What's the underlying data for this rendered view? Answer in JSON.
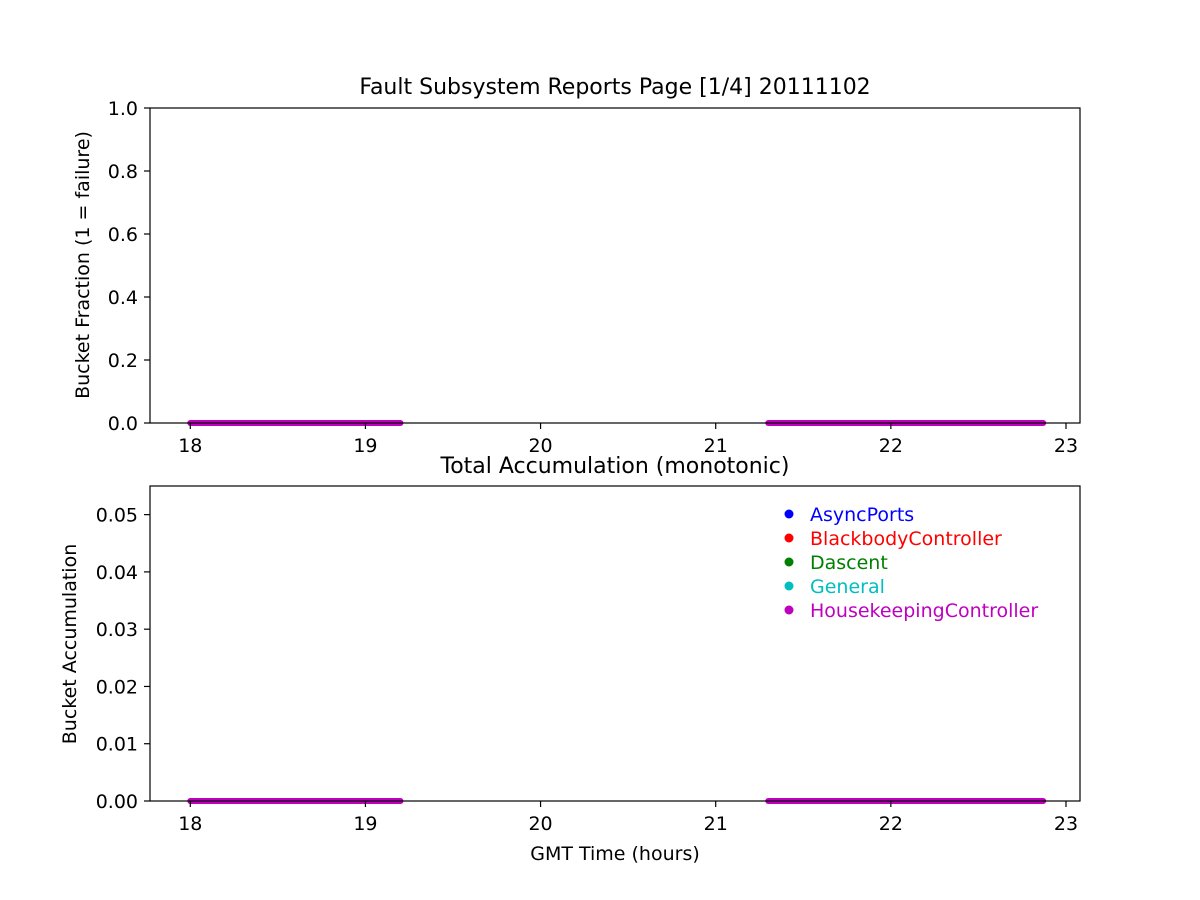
{
  "chart_data": [
    {
      "type": "scatter",
      "title": "Fault Subsystem Reports Page [1/4] 20111102",
      "xlabel": "",
      "ylabel": "Bucket Fraction (1 = failure)",
      "xlim": [
        17.77,
        23.08
      ],
      "ylim": [
        0.0,
        1.0
      ],
      "xticks": [
        18,
        19,
        20,
        21,
        22,
        23
      ],
      "xtick_labels": [
        "18",
        "19",
        "20",
        "21",
        "22",
        "23"
      ],
      "yticks": [
        0.0,
        0.2,
        0.4,
        0.6,
        0.8,
        1.0
      ],
      "ytick_labels": [
        "0.0",
        "0.2",
        "0.4",
        "0.6",
        "0.8",
        "1.0"
      ],
      "grid": false,
      "series": [
        {
          "name": "HousekeepingController",
          "color": "#bf00bf",
          "segments": [
            {
              "x_start": 18.0,
              "x_end": 19.2,
              "y": 0.0
            },
            {
              "x_start": 21.3,
              "x_end": 22.87,
              "y": 0.0
            }
          ]
        }
      ]
    },
    {
      "type": "scatter",
      "title": "Total Accumulation (monotonic)",
      "xlabel": "GMT Time (hours)",
      "ylabel": "Bucket Accumulation",
      "xlim": [
        17.77,
        23.08
      ],
      "ylim": [
        0.0,
        0.055
      ],
      "xticks": [
        18,
        19,
        20,
        21,
        22,
        23
      ],
      "xtick_labels": [
        "18",
        "19",
        "20",
        "21",
        "22",
        "23"
      ],
      "yticks": [
        0.0,
        0.01,
        0.02,
        0.03,
        0.04,
        0.05
      ],
      "ytick_labels": [
        "0.00",
        "0.01",
        "0.02",
        "0.03",
        "0.04",
        "0.05"
      ],
      "grid": false,
      "legend_position": "top-right",
      "legend": [
        {
          "name": "AsyncPorts",
          "color": "#0000ff"
        },
        {
          "name": "BlackbodyController",
          "color": "#ff0000"
        },
        {
          "name": "Dascent",
          "color": "#008000"
        },
        {
          "name": "General",
          "color": "#00bfbf"
        },
        {
          "name": "HousekeepingController",
          "color": "#bf00bf"
        }
      ],
      "series": [
        {
          "name": "HousekeepingController",
          "color": "#bf00bf",
          "segments": [
            {
              "x_start": 18.0,
              "x_end": 19.2,
              "y": 0.0
            },
            {
              "x_start": 21.3,
              "x_end": 22.87,
              "y": 0.0
            }
          ]
        }
      ]
    }
  ]
}
